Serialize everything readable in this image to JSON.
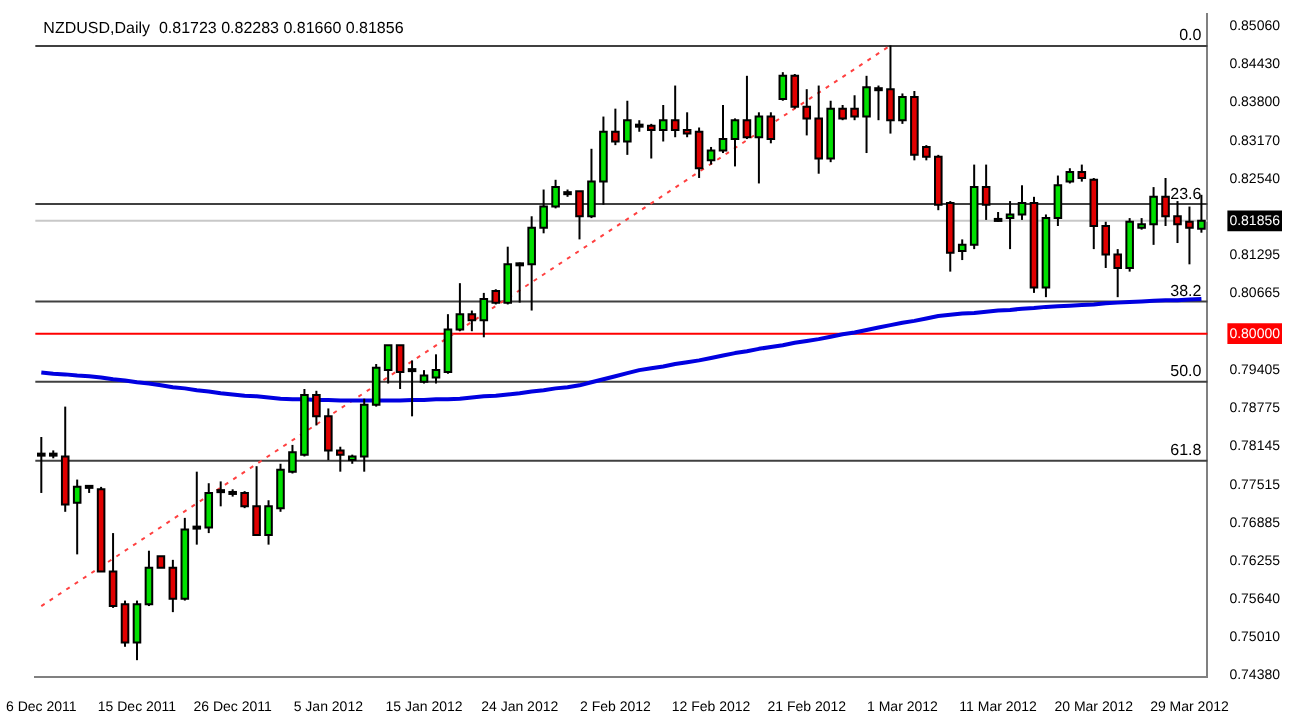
{
  "chart_data": {
    "type": "candlestick",
    "title": "NZDUSD,Daily  0.81723 0.82283 0.81660 0.81856",
    "categories": [
      "6 Dec 2011",
      null,
      null,
      null,
      null,
      null,
      null,
      null,
      "15 Dec 2011",
      null,
      null,
      null,
      null,
      null,
      null,
      null,
      "26 Dec 2011",
      null,
      null,
      null,
      null,
      null,
      null,
      null,
      "5 Jan 2012",
      null,
      null,
      null,
      null,
      null,
      null,
      null,
      "15 Jan 2012",
      null,
      null,
      null,
      null,
      null,
      null,
      null,
      "24 Jan 2012",
      null,
      null,
      null,
      null,
      null,
      null,
      null,
      "2 Feb 2012",
      null,
      null,
      null,
      null,
      null,
      null,
      null,
      "12 Feb 2012",
      null,
      null,
      null,
      null,
      null,
      null,
      null,
      "21 Feb 2012",
      null,
      null,
      null,
      null,
      null,
      null,
      null,
      "1 Mar 2012",
      null,
      null,
      null,
      null,
      null,
      null,
      null,
      "11 Mar 2012",
      null,
      null,
      null,
      null,
      null,
      null,
      null,
      "20 Mar 2012",
      null,
      null,
      null,
      null,
      null,
      null,
      null,
      "29 Mar 2012",
      null
    ],
    "ohlc": [
      [
        0.7801,
        0.783,
        0.7738,
        0.7801
      ],
      [
        0.7801,
        0.7808,
        0.7795,
        0.7801
      ],
      [
        0.7798,
        0.788,
        0.7707,
        0.7719
      ],
      [
        0.7722,
        0.776,
        0.7637,
        0.7748
      ],
      [
        0.7748,
        0.7751,
        0.7738,
        0.7748
      ],
      [
        0.7744,
        0.7748,
        0.7609,
        0.7609
      ],
      [
        0.7609,
        0.7672,
        0.7549,
        0.7552
      ],
      [
        0.7555,
        0.7561,
        0.7485,
        0.7492
      ],
      [
        0.7492,
        0.7561,
        0.7463,
        0.7555
      ],
      [
        0.7555,
        0.7643,
        0.7552,
        0.7615
      ],
      [
        0.7634,
        0.7634,
        0.7615,
        0.7615
      ],
      [
        0.7615,
        0.7628,
        0.7542,
        0.7564
      ],
      [
        0.7564,
        0.7697,
        0.7561,
        0.7678
      ],
      [
        0.7681,
        0.7773,
        0.7653,
        0.7681
      ],
      [
        0.7681,
        0.7754,
        0.7672,
        0.7738
      ],
      [
        0.7741,
        0.7757,
        0.7716,
        0.7741
      ],
      [
        0.7738,
        0.7744,
        0.7732,
        0.7738
      ],
      [
        0.7738,
        0.7741,
        0.7713,
        0.7716
      ],
      [
        0.7716,
        0.7782,
        0.7669,
        0.7669
      ],
      [
        0.7669,
        0.7726,
        0.7653,
        0.7716
      ],
      [
        0.7713,
        0.7786,
        0.7707,
        0.7776
      ],
      [
        0.7773,
        0.7817,
        0.777,
        0.7805
      ],
      [
        0.7801,
        0.7909,
        0.7798,
        0.7899
      ],
      [
        0.7899,
        0.7906,
        0.7849,
        0.7864
      ],
      [
        0.7864,
        0.7877,
        0.7792,
        0.7808
      ],
      [
        0.7808,
        0.7814,
        0.7773,
        0.7801
      ],
      [
        0.7792,
        0.7801,
        0.7786,
        0.7798
      ],
      [
        0.7798,
        0.7893,
        0.7773,
        0.7883
      ],
      [
        0.7883,
        0.795,
        0.788,
        0.7944
      ],
      [
        0.794,
        0.7981,
        0.7918,
        0.7981
      ],
      [
        0.7981,
        0.7981,
        0.7909,
        0.7937
      ],
      [
        0.794,
        0.7956,
        0.7864,
        0.794
      ],
      [
        0.7921,
        0.794,
        0.7918,
        0.7931
      ],
      [
        0.7928,
        0.7966,
        0.7918,
        0.794
      ],
      [
        0.7937,
        0.8032,
        0.7934,
        0.8007
      ],
      [
        0.8007,
        0.8083,
        0.8004,
        0.8032
      ],
      [
        0.8032,
        0.8038,
        0.8004,
        0.8022
      ],
      [
        0.8022,
        0.8067,
        0.7994,
        0.8057
      ],
      [
        0.807,
        0.8073,
        0.8048,
        0.8051
      ],
      [
        0.8051,
        0.8143,
        0.8048,
        0.8114
      ],
      [
        0.8114,
        0.8117,
        0.8051,
        0.8114
      ],
      [
        0.8114,
        0.8193,
        0.8038,
        0.8174
      ],
      [
        0.8174,
        0.8237,
        0.8165,
        0.8209
      ],
      [
        0.8209,
        0.8253,
        0.8206,
        0.8241
      ],
      [
        0.8231,
        0.8237,
        0.8225,
        0.8231
      ],
      [
        0.8234,
        0.8234,
        0.8155,
        0.8193
      ],
      [
        0.8193,
        0.8304,
        0.819,
        0.825
      ],
      [
        0.825,
        0.8357,
        0.8212,
        0.8332
      ],
      [
        0.8332,
        0.837,
        0.831,
        0.8316
      ],
      [
        0.8316,
        0.8383,
        0.8294,
        0.8351
      ],
      [
        0.8342,
        0.8351,
        0.8332,
        0.8342
      ],
      [
        0.8342,
        0.8345,
        0.8288,
        0.8335
      ],
      [
        0.8335,
        0.8376,
        0.8316,
        0.8351
      ],
      [
        0.8351,
        0.8408,
        0.8323,
        0.8335
      ],
      [
        0.8335,
        0.8364,
        0.8323,
        0.8329
      ],
      [
        0.8332,
        0.8339,
        0.8256,
        0.8272
      ],
      [
        0.8285,
        0.8307,
        0.8278,
        0.8301
      ],
      [
        0.8301,
        0.8376,
        0.8297,
        0.832
      ],
      [
        0.832,
        0.8354,
        0.8275,
        0.8351
      ],
      [
        0.8351,
        0.8424,
        0.832,
        0.8323
      ],
      [
        0.8323,
        0.8364,
        0.8247,
        0.8357
      ],
      [
        0.8357,
        0.8364,
        0.8313,
        0.832
      ],
      [
        0.8386,
        0.843,
        0.8383,
        0.8424
      ],
      [
        0.8424,
        0.8427,
        0.837,
        0.8373
      ],
      [
        0.8373,
        0.8402,
        0.8326,
        0.8354
      ],
      [
        0.8354,
        0.8408,
        0.8263,
        0.8288
      ],
      [
        0.8288,
        0.8383,
        0.8282,
        0.837
      ],
      [
        0.837,
        0.8376,
        0.8351,
        0.8354
      ],
      [
        0.837,
        0.8392,
        0.8351,
        0.8357
      ],
      [
        0.8357,
        0.8424,
        0.8297,
        0.8405
      ],
      [
        0.8402,
        0.8408,
        0.8351,
        0.8402
      ],
      [
        0.8402,
        0.8474,
        0.8329,
        0.8351
      ],
      [
        0.8351,
        0.8395,
        0.8345,
        0.8389
      ],
      [
        0.8389,
        0.8399,
        0.8285,
        0.8294
      ],
      [
        0.8307,
        0.831,
        0.8285,
        0.8291
      ],
      [
        0.8291,
        0.8294,
        0.8203,
        0.8212
      ],
      [
        0.8215,
        0.8218,
        0.8102,
        0.8133
      ],
      [
        0.8136,
        0.8155,
        0.8121,
        0.8146
      ],
      [
        0.8146,
        0.8278,
        0.8139,
        0.8241
      ],
      [
        0.8241,
        0.8278,
        0.8187,
        0.8212
      ],
      [
        0.8187,
        0.82,
        0.8184,
        0.8187
      ],
      [
        0.819,
        0.8218,
        0.8139,
        0.8196
      ],
      [
        0.8196,
        0.8244,
        0.8187,
        0.8215
      ],
      [
        0.8215,
        0.8225,
        0.8067,
        0.8076
      ],
      [
        0.8076,
        0.8196,
        0.806,
        0.819
      ],
      [
        0.819,
        0.826,
        0.8177,
        0.8244
      ],
      [
        0.825,
        0.8272,
        0.8247,
        0.8266
      ],
      [
        0.8266,
        0.8278,
        0.825,
        0.8256
      ],
      [
        0.8253,
        0.8256,
        0.8139,
        0.8177
      ],
      [
        0.8177,
        0.8184,
        0.8108,
        0.813
      ],
      [
        0.813,
        0.8139,
        0.806,
        0.8108
      ],
      [
        0.8108,
        0.819,
        0.8102,
        0.8184
      ],
      [
        0.8174,
        0.819,
        0.8171,
        0.818
      ],
      [
        0.818,
        0.8241,
        0.8146,
        0.8225
      ],
      [
        0.8225,
        0.8256,
        0.8177,
        0.8193
      ],
      [
        0.8193,
        0.8218,
        0.8149,
        0.818
      ],
      [
        0.8184,
        0.8209,
        0.8114,
        0.8174
      ],
      [
        0.81723,
        0.82283,
        0.8166,
        0.81856
      ]
    ],
    "colors": [
      "#000000",
      "#000000",
      "#e00000",
      "#00e000",
      "#000000",
      "#e00000",
      "#e00000",
      "#e00000",
      "#00e000",
      "#00e000",
      "#e00000",
      "#e00000",
      "#00e000",
      "#000000",
      "#00e000",
      "#000000",
      "#000000",
      "#e00000",
      "#e00000",
      "#00e000",
      "#00e000",
      "#00e000",
      "#00e000",
      "#e00000",
      "#e00000",
      "#e00000",
      "#00e000",
      "#00e000",
      "#00e000",
      "#00e000",
      "#e00000",
      "#000000",
      "#00e000",
      "#00e000",
      "#00e000",
      "#00e000",
      "#e00000",
      "#00e000",
      "#e00000",
      "#00e000",
      "#000000",
      "#00e000",
      "#00e000",
      "#00e000",
      "#000000",
      "#e00000",
      "#00e000",
      "#00e000",
      "#e00000",
      "#00e000",
      "#000000",
      "#e00000",
      "#00e000",
      "#e00000",
      "#e00000",
      "#e00000",
      "#00e000",
      "#00e000",
      "#00e000",
      "#e00000",
      "#00e000",
      "#e00000",
      "#00e000",
      "#e00000",
      "#e00000",
      "#e00000",
      "#00e000",
      "#e00000",
      "#e00000",
      "#00e000",
      "#000000",
      "#e00000",
      "#00e000",
      "#e00000",
      "#e00000",
      "#e00000",
      "#e00000",
      "#00e000",
      "#00e000",
      "#e00000",
      "#000000",
      "#00e000",
      "#00e000",
      "#e00000",
      "#00e000",
      "#00e000",
      "#00e000",
      "#e00000",
      "#e00000",
      "#e00000",
      "#e00000",
      "#00e000",
      "#00e000",
      "#00e000",
      "#e00000",
      "#e00000",
      "#e00000",
      "#00e000"
    ],
    "series": [
      {
        "type": "line",
        "color": "#0000e0",
        "values": [
          0.7936,
          0.7934,
          0.7933,
          0.7931,
          0.793,
          0.7928,
          0.7925,
          0.7923,
          0.792,
          0.7918,
          0.7915,
          0.7912,
          0.791,
          0.7907,
          0.7905,
          0.7902,
          0.79,
          0.7898,
          0.7897,
          0.7895,
          0.7893,
          0.7892,
          0.7892,
          0.7891,
          0.7891,
          0.789,
          0.789,
          0.789,
          0.789,
          0.789,
          0.789,
          0.7891,
          0.7891,
          0.7892,
          0.7892,
          0.7893,
          0.7895,
          0.7897,
          0.7898,
          0.79,
          0.7902,
          0.7905,
          0.7907,
          0.791,
          0.7912,
          0.7915,
          0.792,
          0.7925,
          0.793,
          0.7935,
          0.794,
          0.7943,
          0.7946,
          0.795,
          0.7953,
          0.7956,
          0.796,
          0.7964,
          0.7968,
          0.7971,
          0.7975,
          0.7978,
          0.7981,
          0.7985,
          0.7988,
          0.7991,
          0.7995,
          0.7999,
          0.8002,
          0.8006,
          0.801,
          0.8014,
          0.8018,
          0.8021,
          0.8025,
          0.8029,
          0.8031,
          0.8033,
          0.8034,
          0.8036,
          0.8038,
          0.8039,
          0.8041,
          0.8042,
          0.8044,
          0.8045,
          0.8046,
          0.8047,
          0.8048,
          0.805,
          0.8051,
          0.8052,
          0.8053,
          0.8054,
          0.8055,
          0.8055,
          0.8056,
          0.8057
        ]
      },
      {
        "type": "line",
        "color": "#ff4040",
        "line_style": "dotted",
        "values": [
          0.7552,
          null,
          null,
          null,
          null,
          null,
          null,
          null,
          null,
          null,
          null,
          null,
          null,
          null,
          null,
          null,
          null,
          null,
          null,
          null,
          null,
          null,
          null,
          null,
          null,
          null,
          null,
          null,
          null,
          null,
          null,
          null,
          null,
          null,
          null,
          null,
          null,
          null,
          null,
          null,
          null,
          null,
          null,
          null,
          null,
          null,
          null,
          null,
          null,
          null,
          null,
          null,
          null,
          null,
          null,
          null,
          null,
          null,
          null,
          null,
          null,
          null,
          null,
          null,
          null,
          null,
          null,
          null,
          null,
          null,
          null,
          0.8474,
          null,
          null,
          null,
          null,
          null,
          null,
          null,
          null,
          null,
          null,
          null,
          null,
          null,
          null,
          null,
          null,
          null,
          null,
          null,
          null,
          null,
          null,
          null,
          null,
          null,
          null
        ]
      }
    ],
    "ylim": [
      0.7435,
      0.8525
    ],
    "yticks": [
      {
        "value": 0.8506,
        "label": "0.85060"
      },
      {
        "value": 0.8443,
        "label": "0.84430"
      },
      {
        "value": 0.838,
        "label": "0.83800"
      },
      {
        "value": 0.8317,
        "label": "0.83170"
      },
      {
        "value": 0.8254,
        "label": "0.82540"
      },
      {
        "value": 0.81856,
        "label": "0.81856"
      },
      {
        "value": 0.81295,
        "label": "0.81295"
      },
      {
        "value": 0.80665,
        "label": "0.80665"
      },
      {
        "value": 0.8,
        "label": "0.80000"
      },
      {
        "value": 0.79405,
        "label": "0.79405"
      },
      {
        "value": 0.78775,
        "label": "0.78775"
      },
      {
        "value": 0.78145,
        "label": "0.78145"
      },
      {
        "value": 0.77515,
        "label": "0.77515"
      },
      {
        "value": 0.76885,
        "label": "0.76885"
      },
      {
        "value": 0.76255,
        "label": "0.76255"
      },
      {
        "value": 0.7564,
        "label": "0.75640"
      },
      {
        "value": 0.7501,
        "label": "0.75010"
      },
      {
        "value": 0.7438,
        "label": "0.74380"
      }
    ],
    "ref_lines": [
      {
        "axis": "y",
        "value": 0.8473,
        "color": "#404040"
      },
      {
        "axis": "y",
        "value": 0.8213,
        "color": "#404040"
      },
      {
        "axis": "y",
        "value": 0.81856,
        "color": "#c8c8c8"
      },
      {
        "axis": "y",
        "value": 0.8053,
        "color": "#404040"
      },
      {
        "axis": "y",
        "value": 0.8,
        "color": "#ff0000"
      },
      {
        "axis": "y",
        "value": 0.7921,
        "color": "#404040"
      },
      {
        "axis": "y",
        "value": 0.7791,
        "color": "#404040"
      }
    ],
    "annotations": [
      {
        "text": "0.0",
        "y": 0.8473
      },
      {
        "text": "23.6",
        "y": 0.8213
      },
      {
        "text": "38.2",
        "y": 0.8053
      },
      {
        "text": "50.0",
        "y": 0.7921
      },
      {
        "text": "61.8",
        "y": 0.7791
      }
    ],
    "grid": false,
    "legend": false
  }
}
